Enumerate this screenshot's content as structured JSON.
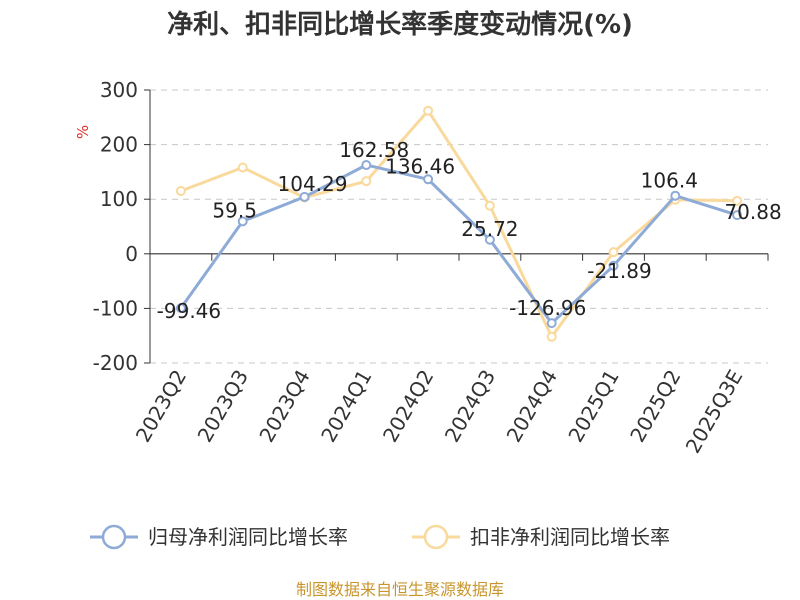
{
  "chart_data": {
    "type": "line",
    "title": "净利、扣非同比增长率季度变动情况(%)",
    "ylabel": "%",
    "ylim": [
      -200,
      300
    ],
    "yticks": [
      300,
      200,
      100,
      0,
      -100,
      -200
    ],
    "grid": true,
    "legend_position": "bottom",
    "categories": [
      "2023Q2",
      "2023Q3",
      "2023Q4",
      "2024Q1",
      "2024Q2",
      "2024Q3",
      "2024Q4",
      "2025Q1",
      "2025Q2",
      "2025Q3E"
    ],
    "series": [
      {
        "name": "归母净利润同比增长率",
        "color": "#8eaad6",
        "values": [
          -99.46,
          59.5,
          104.29,
          162.58,
          136.46,
          25.72,
          -126.96,
          -21.89,
          106.4,
          70.88
        ],
        "labels": [
          "-99.46",
          "59.5",
          "104.29",
          "162.58",
          "136.46",
          "25.72",
          "-126.96",
          "-21.89",
          "106.4",
          "70.88"
        ]
      },
      {
        "name": "扣非净利润同比增长率",
        "color": "#fad99c",
        "values": [
          115,
          158,
          103,
          133,
          262,
          88,
          -152,
          3,
          99,
          97
        ]
      }
    ]
  },
  "source": "制图数据来自恒生聚源数据库"
}
